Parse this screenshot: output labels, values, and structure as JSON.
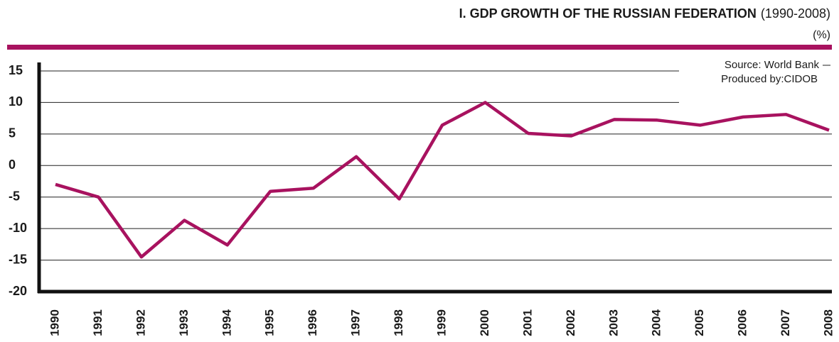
{
  "chart_data": {
    "type": "line",
    "title": "I. GDP GROWTH OF THE RUSSIAN FEDERATION",
    "subtitle": "(1990-2008)",
    "ylabel": "(%)",
    "annotations": [
      "Source: World Bank",
      "Produced by:CIDOB"
    ],
    "categories": [
      "1990",
      "1991",
      "1992",
      "1993",
      "1994",
      "1995",
      "1996",
      "1997",
      "1998",
      "1999",
      "2000",
      "2001",
      "2002",
      "2003",
      "2004",
      "2005",
      "2006",
      "2007",
      "2008"
    ],
    "values": [
      -3,
      -5,
      -14.5,
      -8.7,
      -12.6,
      -4.1,
      -3.6,
      1.4,
      -5.3,
      6.4,
      10,
      5.1,
      4.7,
      7.3,
      7.2,
      6.4,
      7.7,
      8.1,
      5.6
    ],
    "color": "#a8125f",
    "ylim": [
      -20,
      15
    ],
    "yticks": [
      15,
      10,
      5,
      0,
      -5,
      -10,
      -15,
      -20
    ],
    "grid": true
  }
}
